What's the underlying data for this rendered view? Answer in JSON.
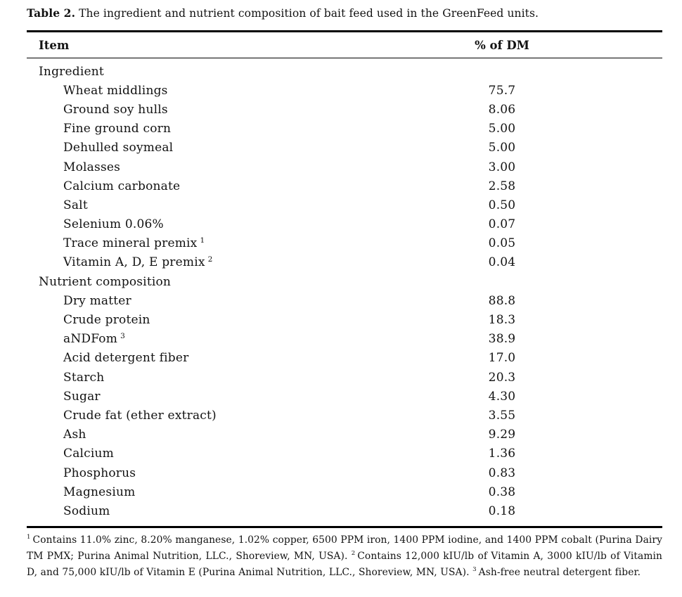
{
  "caption": {
    "label": "Table 2.",
    "text": " The ingredient and nutrient composition of bait feed used in the GreenFeed units."
  },
  "table": {
    "columns": [
      "Item",
      "% of DM"
    ],
    "rows": [
      {
        "label": "Ingredient",
        "indent": 0,
        "sup": "",
        "value": ""
      },
      {
        "label": "Wheat middlings",
        "indent": 1,
        "sup": "",
        "value": "75.7"
      },
      {
        "label": "Ground soy hulls",
        "indent": 1,
        "sup": "",
        "value": "8.06"
      },
      {
        "label": "Fine ground corn",
        "indent": 1,
        "sup": "",
        "value": "5.00"
      },
      {
        "label": "Dehulled soymeal",
        "indent": 1,
        "sup": "",
        "value": "5.00"
      },
      {
        "label": "Molasses",
        "indent": 1,
        "sup": "",
        "value": "3.00"
      },
      {
        "label": "Calcium carbonate",
        "indent": 1,
        "sup": "",
        "value": "2.58"
      },
      {
        "label": "Salt",
        "indent": 1,
        "sup": "",
        "value": "0.50"
      },
      {
        "label": "Selenium 0.06%",
        "indent": 1,
        "sup": "",
        "value": "0.07"
      },
      {
        "label": "Trace mineral premix",
        "indent": 1,
        "sup": "1",
        "value": "0.05"
      },
      {
        "label": "Vitamin A, D, E premix",
        "indent": 1,
        "sup": "2",
        "value": "0.04"
      },
      {
        "label": "Nutrient composition",
        "indent": 0,
        "sup": "",
        "value": ""
      },
      {
        "label": "Dry matter",
        "indent": 1,
        "sup": "",
        "value": "88.8"
      },
      {
        "label": "Crude protein",
        "indent": 1,
        "sup": "",
        "value": "18.3"
      },
      {
        "label": "aNDFom",
        "indent": 1,
        "sup": "3",
        "value": "38.9"
      },
      {
        "label": "Acid detergent fiber",
        "indent": 1,
        "sup": "",
        "value": "17.0"
      },
      {
        "label": "Starch",
        "indent": 1,
        "sup": "",
        "value": "20.3"
      },
      {
        "label": "Sugar",
        "indent": 1,
        "sup": "",
        "value": "4.30"
      },
      {
        "label": "Crude fat (ether extract)",
        "indent": 1,
        "sup": "",
        "value": "3.55"
      },
      {
        "label": "Ash",
        "indent": 1,
        "sup": "",
        "value": "9.29"
      },
      {
        "label": "Calcium",
        "indent": 1,
        "sup": "",
        "value": "1.36"
      },
      {
        "label": "Phosphorus",
        "indent": 1,
        "sup": "",
        "value": "0.83"
      },
      {
        "label": "Magnesium",
        "indent": 1,
        "sup": "",
        "value": "0.38"
      },
      {
        "label": "Sodium",
        "indent": 1,
        "sup": "",
        "value": "0.18"
      }
    ]
  },
  "footnotes": [
    {
      "sup": "1",
      "text": "Contains 11.0% zinc, 8.20% manganese, 1.02% copper, 6500 PPM iron, 1400 PPM iodine, and 1400 PPM cobalt (Purina Dairy TM PMX; Purina Animal Nutrition, LLC., Shoreview, MN, USA). "
    },
    {
      "sup": "2",
      "text": "Contains 12,000 kIU/lb of Vitamin A, 3000 kIU/lb of Vitamin D, and 75,000 kIU/lb of Vitamin E (Purina Animal Nutrition, LLC., Shoreview, MN, USA). "
    },
    {
      "sup": "3",
      "text": "Ash-free neutral detergent fiber."
    }
  ],
  "colors": {
    "background": "#ffffff",
    "text": "#121212",
    "rule": "#000000"
  }
}
